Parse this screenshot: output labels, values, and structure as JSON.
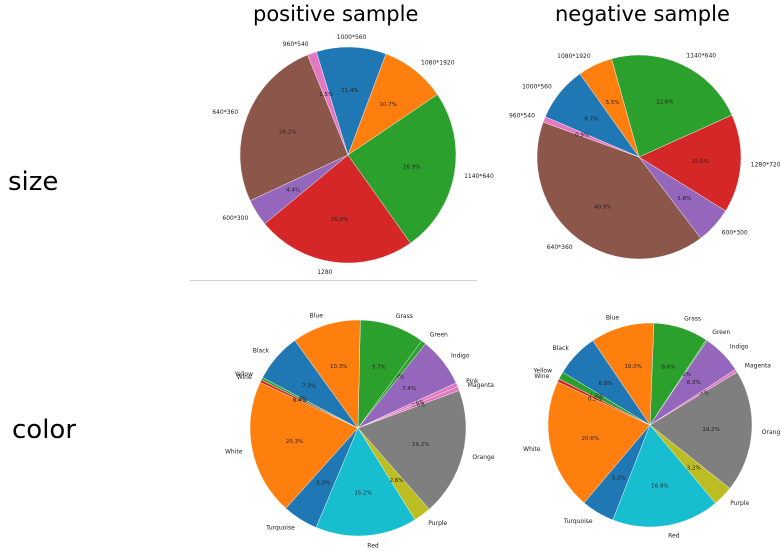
{
  "headers": {
    "left": "positive sample",
    "right": "negative sample"
  },
  "rows": {
    "size": "size",
    "color": "color"
  },
  "chart_data": [
    {
      "type": "pie",
      "labels": [
        "640*360",
        "600*300",
        "1280",
        "1140*640",
        "1080*1920",
        "1000*560",
        "960*540"
      ],
      "values": [
        28.2,
        4.4,
        26.0,
        26.9,
        10.7,
        11.4,
        1.5
      ],
      "value_labels": [
        "28.2%",
        "4.4%",
        "26.0%",
        "26.9%",
        "10.7%",
        "11.4%",
        "1.5%"
      ],
      "colors": [
        "#8c564b",
        "#9467bd",
        "#d62728",
        "#2ca02c",
        "#ff7f0e",
        "#1f77b4",
        "#e377c2"
      ],
      "start_angle": 112
    },
    {
      "type": "pie",
      "labels": [
        "640*360",
        "600*300",
        "1280*720",
        "1140*640",
        "1080*1920",
        "1000*560",
        "960*540"
      ],
      "values": [
        40.9,
        5.8,
        15.6,
        22.6,
        5.5,
        8.7,
        0.9
      ],
      "value_labels": [
        "40.9%",
        "5.8%",
        "15.6%",
        "22.6%",
        "5.5%",
        "8.7%",
        "0.9%"
      ],
      "colors": [
        "#8c564b",
        "#9467bd",
        "#d62728",
        "#2ca02c",
        "#ff7f0e",
        "#1f77b4",
        "#e377c2"
      ],
      "start_angle": 160
    },
    {
      "type": "pie",
      "labels": [
        "White",
        "Turquoise",
        "Red",
        "Purple",
        "Orange",
        "Magenta",
        "Pink",
        "Indigo",
        "Green",
        "Grass",
        "Blue",
        "Black",
        "Yellow",
        "Wine"
      ],
      "values": [
        20.3,
        5.3,
        15.2,
        2.6,
        19.2,
        0.6,
        0.6,
        7.4,
        0.7,
        9.7,
        10.3,
        7.3,
        0.4,
        0.4
      ],
      "value_labels": [
        "20.3%",
        "5.3%",
        "15.2%",
        "2.6%",
        "19.2%",
        "0.6%",
        "0.6%",
        "7.4%",
        "0.7%",
        "9.7%",
        "10.3%",
        "7.3%",
        "0.4%",
        "0.4%"
      ],
      "colors": [
        "#ff7f0e",
        "#1f77b4",
        "#17becf",
        "#bcbd22",
        "#7f7f7f",
        "#e377c2",
        "#e377c2",
        "#9467bd",
        "#2ca02c",
        "#2ca02c",
        "#ff7f0e",
        "#1f77b4",
        "#2ca02c",
        "#d62728"
      ],
      "start_angle": 155
    },
    {
      "type": "pie",
      "labels": [
        "White",
        "Turquoise",
        "Red",
        "Purple",
        "Orange",
        "Magenta",
        "Indigo",
        "Green",
        "Grass",
        "Blue",
        "Black",
        "Yellow",
        "Wine"
      ],
      "values": [
        20.6,
        5.2,
        16.9,
        3.2,
        19.2,
        0.5,
        6.3,
        0.2,
        8.6,
        10.0,
        6.8,
        1.2,
        0.5
      ],
      "value_labels": [
        "20.6%",
        "5.2%",
        "16.9%",
        "3.2%",
        "19.2%",
        "0.5%",
        "6.3%",
        "0.2%",
        "8.6%",
        "10.0%",
        "6.8%",
        "1.2%",
        "0.5%"
      ],
      "colors": [
        "#ff7f0e",
        "#1f77b4",
        "#17becf",
        "#bcbd22",
        "#7f7f7f",
        "#e377c2",
        "#9467bd",
        "#2ca02c",
        "#2ca02c",
        "#ff7f0e",
        "#1f77b4",
        "#2ca02c",
        "#d62728"
      ],
      "start_angle": 155
    }
  ]
}
